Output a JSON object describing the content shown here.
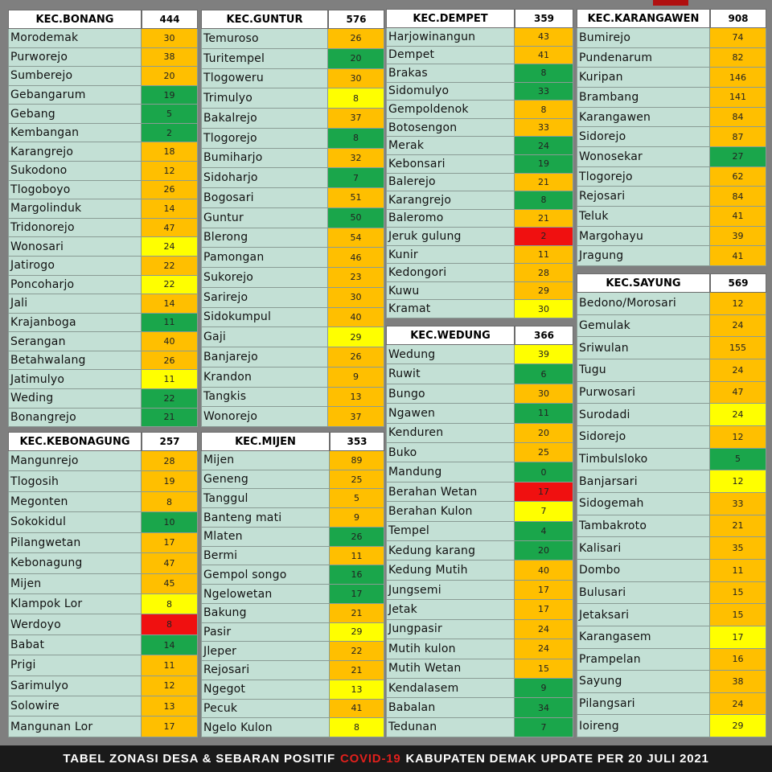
{
  "palette": {
    "G": "#1aa64b",
    "Y": "#ffff00",
    "O": "#ffbf00",
    "R": "#f01010"
  },
  "panels": [
    {
      "name": "KEC.BONANG",
      "total": "444",
      "rows": [
        [
          "Morodemak",
          "30",
          "O"
        ],
        [
          "Purworejo",
          "38",
          "O"
        ],
        [
          "Sumberejo",
          "20",
          "O"
        ],
        [
          "Gebangarum",
          "19",
          "G"
        ],
        [
          "Gebang",
          "5",
          "G"
        ],
        [
          "Kembangan",
          "2",
          "G"
        ],
        [
          "Karangrejo",
          "18",
          "O"
        ],
        [
          "Sukodono",
          "12",
          "O"
        ],
        [
          "Tlogoboyo",
          "26",
          "O"
        ],
        [
          "Margolinduk",
          "14",
          "O"
        ],
        [
          "Tridonorejo",
          "47",
          "O"
        ],
        [
          "Wonosari",
          "24",
          "Y"
        ],
        [
          "Jatirogo",
          "22",
          "O"
        ],
        [
          "Poncoharjo",
          "22",
          "Y"
        ],
        [
          "Jali",
          "14",
          "O"
        ],
        [
          "Krajanboga",
          "11",
          "G"
        ],
        [
          "Serangan",
          "40",
          "O"
        ],
        [
          "Betahwalang",
          "26",
          "O"
        ],
        [
          "Jatimulyo",
          "11",
          "Y"
        ],
        [
          "Weding",
          "22",
          "G"
        ],
        [
          "Bonangrejo",
          "21",
          "G"
        ]
      ]
    },
    {
      "name": "KEC.KEBONAGUNG",
      "total": "257",
      "rows": [
        [
          "Mangunrejo",
          "28",
          "O"
        ],
        [
          "Tlogosih",
          "19",
          "O"
        ],
        [
          "Megonten",
          "8",
          "O"
        ],
        [
          "Sokokidul",
          "10",
          "G"
        ],
        [
          "Pilangwetan",
          "17",
          "O"
        ],
        [
          "Kebonagung",
          "47",
          "O"
        ],
        [
          "Mijen",
          "45",
          "O"
        ],
        [
          "Klampok Lor",
          "8",
          "Y"
        ],
        [
          "Werdoyo",
          "8",
          "R"
        ],
        [
          "Babat",
          "14",
          "G"
        ],
        [
          "Prigi",
          "11",
          "O"
        ],
        [
          "Sarimulyo",
          "12",
          "O"
        ],
        [
          "Solowire",
          "13",
          "O"
        ],
        [
          "Mangunan Lor",
          "17",
          "O"
        ]
      ]
    },
    {
      "name": "KEC.GUNTUR",
      "total": "576",
      "rows": [
        [
          "Temuroso",
          "26",
          "O"
        ],
        [
          "Turitempel",
          "20",
          "G"
        ],
        [
          "Tlogoweru",
          "30",
          "O"
        ],
        [
          "Trimulyo",
          "8",
          "Y"
        ],
        [
          "Bakalrejo",
          "37",
          "O"
        ],
        [
          "Tlogorejo",
          "8",
          "G"
        ],
        [
          "Bumiharjo",
          "32",
          "O"
        ],
        [
          "Sidoharjo",
          "7",
          "G"
        ],
        [
          "Bogosari",
          "51",
          "O"
        ],
        [
          "Guntur",
          "50",
          "G"
        ],
        [
          "Blerong",
          "54",
          "O"
        ],
        [
          "Pamongan",
          "46",
          "O"
        ],
        [
          "Sukorejo",
          "23",
          "O"
        ],
        [
          "Sarirejo",
          "30",
          "O"
        ],
        [
          "Sidokumpul",
          "40",
          "O"
        ],
        [
          "Gaji",
          "29",
          "Y"
        ],
        [
          "Banjarejo",
          "26",
          "O"
        ],
        [
          "Krandon",
          "9",
          "O"
        ],
        [
          "Tangkis",
          "13",
          "O"
        ],
        [
          "Wonorejo",
          "37",
          "O"
        ]
      ]
    },
    {
      "name": "KEC.MIJEN",
      "total": "353",
      "rows": [
        [
          "Mijen",
          "89",
          "O"
        ],
        [
          "Geneng",
          "25",
          "O"
        ],
        [
          "Tanggul",
          "5",
          "O"
        ],
        [
          "Banteng mati",
          "9",
          "O"
        ],
        [
          "Mlaten",
          "26",
          "G"
        ],
        [
          "Bermi",
          "11",
          "O"
        ],
        [
          "Gempol songo",
          "16",
          "G"
        ],
        [
          "Ngelowetan",
          "17",
          "G"
        ],
        [
          "Bakung",
          "21",
          "O"
        ],
        [
          "Pasir",
          "29",
          "Y"
        ],
        [
          "Jleper",
          "22",
          "O"
        ],
        [
          "Rejosari",
          "21",
          "O"
        ],
        [
          "Ngegot",
          "13",
          "Y"
        ],
        [
          "Pecuk",
          "41",
          "O"
        ],
        [
          "Ngelo Kulon",
          "8",
          "Y"
        ]
      ]
    },
    {
      "name": "KEC.DEMPET",
      "total": "359",
      "rows": [
        [
          "Harjowinangun",
          "43",
          "O"
        ],
        [
          "Dempet",
          "41",
          "O"
        ],
        [
          "Brakas",
          "8",
          "G"
        ],
        [
          "Sidomulyo",
          "33",
          "G"
        ],
        [
          "Gempoldenok",
          "8",
          "O"
        ],
        [
          "Botosengon",
          "33",
          "O"
        ],
        [
          "Merak",
          "24",
          "G"
        ],
        [
          "Kebonsari",
          "19",
          "G"
        ],
        [
          "Balerejo",
          "21",
          "O"
        ],
        [
          "Karangrejo",
          "8",
          "G"
        ],
        [
          "Baleromo",
          "21",
          "O"
        ],
        [
          "Jeruk gulung",
          "2",
          "R"
        ],
        [
          "Kunir",
          "11",
          "O"
        ],
        [
          "Kedongori",
          "28",
          "O"
        ],
        [
          "Kuwu",
          "29",
          "O"
        ],
        [
          "Kramat",
          "30",
          "Y"
        ]
      ]
    },
    {
      "name": "KEC.WEDUNG",
      "total": "366",
      "rows": [
        [
          "Wedung",
          "39",
          "Y"
        ],
        [
          "Ruwit",
          "6",
          "G"
        ],
        [
          "Bungo",
          "30",
          "O"
        ],
        [
          "Ngawen",
          "11",
          "G"
        ],
        [
          "Kenduren",
          "20",
          "O"
        ],
        [
          "Buko",
          "25",
          "O"
        ],
        [
          "Mandung",
          "0",
          "G"
        ],
        [
          "Berahan Wetan",
          "17",
          "R"
        ],
        [
          "Berahan Kulon",
          "7",
          "Y"
        ],
        [
          "Tempel",
          "4",
          "G"
        ],
        [
          "Kedung karang",
          "20",
          "G"
        ],
        [
          "Kedung Mutih",
          "40",
          "O"
        ],
        [
          "Jungsemi",
          "17",
          "O"
        ],
        [
          "Jetak",
          "17",
          "O"
        ],
        [
          "Jungpasir",
          "24",
          "O"
        ],
        [
          "Mutih kulon",
          "24",
          "O"
        ],
        [
          "Mutih Wetan",
          "15",
          "O"
        ],
        [
          "Kendalasem",
          "9",
          "G"
        ],
        [
          "Babalan",
          "34",
          "G"
        ],
        [
          "Tedunan",
          "7",
          "G"
        ]
      ]
    },
    {
      "name": "KEC.KARANGAWEN",
      "total": "908",
      "rows": [
        [
          "Bumirejo",
          "74",
          "O"
        ],
        [
          "Pundenarum",
          "82",
          "O"
        ],
        [
          "Kuripan",
          "146",
          "O"
        ],
        [
          "Brambang",
          "141",
          "O"
        ],
        [
          "Karangawen",
          "84",
          "O"
        ],
        [
          "Sidorejo",
          "87",
          "O"
        ],
        [
          "Wonosekar",
          "27",
          "G"
        ],
        [
          "Tlogorejo",
          "62",
          "O"
        ],
        [
          "Rejosari",
          "84",
          "O"
        ],
        [
          "Teluk",
          "41",
          "O"
        ],
        [
          "Margohayu",
          "39",
          "O"
        ],
        [
          "Jragung",
          "41",
          "O"
        ]
      ]
    },
    {
      "name": "KEC.SAYUNG",
      "total": "569",
      "rows": [
        [
          "Bedono/Morosari",
          "12",
          "O"
        ],
        [
          "Gemulak",
          "24",
          "O"
        ],
        [
          "Sriwulan",
          "155",
          "O"
        ],
        [
          "Tugu",
          "24",
          "O"
        ],
        [
          "Purwosari",
          "47",
          "O"
        ],
        [
          "Surodadi",
          "24",
          "Y"
        ],
        [
          "Sidorejo",
          "12",
          "O"
        ],
        [
          "Timbulsloko",
          "5",
          "G"
        ],
        [
          "Banjarsari",
          "12",
          "Y"
        ],
        [
          "Sidogemah",
          "33",
          "O"
        ],
        [
          "Tambakroto",
          "21",
          "O"
        ],
        [
          "Kalisari",
          "35",
          "O"
        ],
        [
          "Dombo",
          "11",
          "O"
        ],
        [
          "Bulusari",
          "15",
          "O"
        ],
        [
          "Jetaksari",
          "15",
          "O"
        ],
        [
          "Karangasem",
          "17",
          "Y"
        ],
        [
          "Prampelan",
          "16",
          "O"
        ],
        [
          "Sayung",
          "38",
          "O"
        ],
        [
          "Pilangsari",
          "24",
          "O"
        ],
        [
          "Ioireng",
          "29",
          "Y"
        ]
      ]
    }
  ],
  "footer": {
    "prefix": "TABEL ZONASI DESA & SEBARAN POSITIF",
    "highlight": "COVID-19",
    "suffix": "KABUPATEN DEMAK UPDATE PER 20 JULI 2021"
  }
}
